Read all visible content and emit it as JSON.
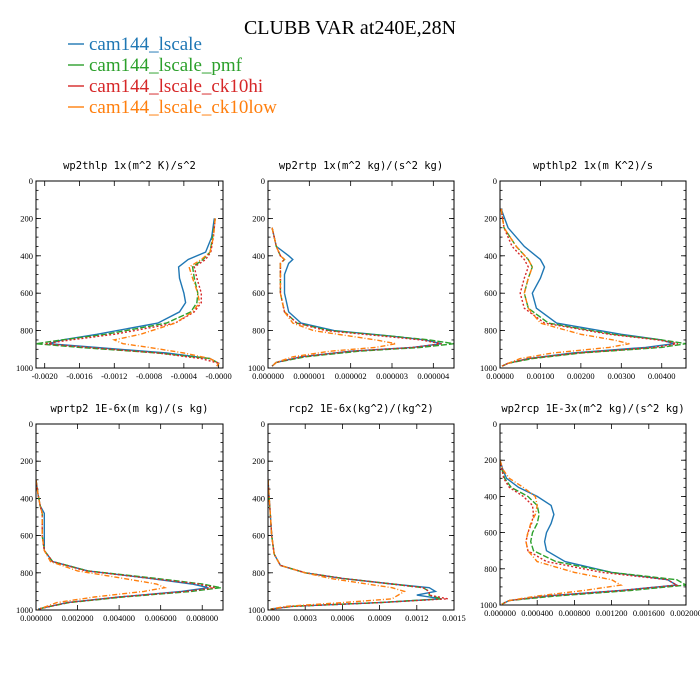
{
  "figure": {
    "title": "CLUBB VAR at240E,28N"
  },
  "legend": [
    {
      "label": "cam144_lscale",
      "color": "#1f77b4",
      "dash": ""
    },
    {
      "label": "cam144_lscale_pmf",
      "color": "#2ca02c",
      "dash": "6,2"
    },
    {
      "label": "cam144_lscale_ck10hi",
      "color": "#d62728",
      "dash": "2,2"
    },
    {
      "label": "cam144_lscale_ck10low",
      "color": "#ff7f0e",
      "dash": "5,2,1,2"
    }
  ],
  "chart_data": [
    {
      "type": "line",
      "title": "wp2thlp  1x(m^2 K)/s^2",
      "xlim": [
        -0.0021,
        5e-05
      ],
      "ylim": [
        1000,
        0
      ],
      "xticks": [
        -0.002,
        -0.0016,
        -0.0012,
        -0.0008,
        -0.0004,
        0.0
      ],
      "xticklabels": [
        "-0.0020",
        "-0.0016",
        "-0.0012",
        "-0.0008",
        "-0.0004",
        "-0.0000"
      ],
      "yticks": [
        0,
        200,
        400,
        600,
        800,
        1000
      ],
      "y": [
        200,
        300,
        380,
        420,
        460,
        520,
        600,
        650,
        700,
        760,
        820,
        850,
        870,
        890,
        920,
        950,
        975,
        990
      ],
      "series": [
        {
          "x": [
            -5e-05,
            -8e-05,
            -0.00015,
            -0.00035,
            -0.00046,
            -0.00045,
            -0.0004,
            -0.00038,
            -0.00045,
            -0.0007,
            -0.0014,
            -0.0018,
            -0.00195,
            -0.0014,
            -0.0006,
            -0.0001,
            0.0,
            -2e-05
          ]
        },
        {
          "x": [
            -4e-05,
            -7e-05,
            -0.0001,
            -0.00018,
            -0.0003,
            -0.00028,
            -0.00024,
            -0.00025,
            -0.00032,
            -0.0006,
            -0.0013,
            -0.0018,
            -0.0021,
            -0.0016,
            -0.0007,
            -0.0001,
            0.0,
            -2e-05
          ]
        },
        {
          "x": [
            -4e-05,
            -6e-05,
            -9e-05,
            -0.00015,
            -0.00028,
            -0.00025,
            -0.0002,
            -0.0002,
            -0.00028,
            -0.0005,
            -0.0012,
            -0.0017,
            -0.002,
            -0.0015,
            -0.0007,
            -0.0002,
            0.0,
            -2e-05
          ]
        },
        {
          "x": [
            -4e-05,
            -6e-05,
            -0.0001,
            -0.0002,
            -0.00034,
            -0.0003,
            -0.00024,
            -0.00022,
            -0.0003,
            -0.0005,
            -0.0009,
            -0.0012,
            -0.0011,
            -0.0008,
            -0.0004,
            -0.0001,
            0.0,
            -2e-05
          ]
        }
      ]
    },
    {
      "type": "line",
      "title": "wp2rtp  1x(m^2 kg)/(s^2 kg)",
      "xlim": [
        0.0,
        4.5e-06
      ],
      "ylim": [
        1000,
        0
      ],
      "xticks": [
        0.0,
        1e-06,
        2e-06,
        3e-06,
        4e-06
      ],
      "xticklabels": [
        "0.000000",
        "0.000001",
        "0.000002",
        "0.000003",
        "0.000004"
      ],
      "yticks": [
        0,
        200,
        400,
        600,
        800,
        1000
      ],
      "y": [
        250,
        350,
        400,
        420,
        440,
        500,
        600,
        700,
        760,
        800,
        830,
        850,
        870,
        890,
        910,
        940,
        970,
        990
      ],
      "series": [
        {
          "x": [
            1e-07,
            2e-07,
            5e-07,
            6e-07,
            5e-07,
            4e-07,
            4e-07,
            5e-07,
            8e-07,
            1.6e-06,
            3e-06,
            3.8e-06,
            4.2e-06,
            3.5e-06,
            2e-06,
            8e-07,
            2e-07,
            1e-07
          ]
        },
        {
          "x": [
            1e-07,
            2e-07,
            3e-07,
            4e-07,
            3e-07,
            3e-07,
            3e-07,
            4e-07,
            7e-07,
            1.5e-06,
            3e-06,
            3.9e-06,
            4.5e-06,
            3.7e-06,
            2.2e-06,
            9e-07,
            2e-07,
            1e-07
          ]
        },
        {
          "x": [
            1e-07,
            2e-07,
            3e-07,
            4e-07,
            3e-07,
            3e-07,
            3e-07,
            4e-07,
            7e-07,
            1.4e-06,
            2.8e-06,
            3.7e-06,
            4.2e-06,
            3.5e-06,
            2e-06,
            8e-07,
            2e-07,
            1e-07
          ]
        },
        {
          "x": [
            1e-07,
            2e-07,
            3e-07,
            4e-07,
            3e-07,
            3e-07,
            3e-07,
            4e-07,
            6e-07,
            1.1e-06,
            2e-06,
            2.6e-06,
            3.1e-06,
            2.6e-06,
            1.5e-06,
            6e-07,
            2e-07,
            1e-07
          ]
        }
      ]
    },
    {
      "type": "line",
      "title": "wpthlp2  1x(m K^2)/s",
      "xlim": [
        0.0,
        0.0046
      ],
      "ylim": [
        1000,
        0
      ],
      "xticks": [
        0.0,
        0.001,
        0.002,
        0.003,
        0.004
      ],
      "xticklabels": [
        "0.00000",
        "0.00100",
        "0.00200",
        "0.00300",
        "0.00400"
      ],
      "yticks": [
        0,
        200,
        400,
        600,
        800,
        1000
      ],
      "y": [
        150,
        250,
        350,
        420,
        460,
        520,
        600,
        680,
        760,
        820,
        850,
        870,
        890,
        920,
        950,
        975,
        990
      ],
      "series": [
        {
          "x": [
            3e-05,
            0.0002,
            0.0006,
            0.001,
            0.0011,
            0.001,
            0.0008,
            0.0009,
            0.0014,
            0.003,
            0.004,
            0.0043,
            0.0036,
            0.0018,
            0.0007,
            0.0002,
            5e-05
          ]
        },
        {
          "x": [
            3e-05,
            0.0001,
            0.0004,
            0.0007,
            0.0008,
            0.0007,
            0.0006,
            0.0007,
            0.0012,
            0.0028,
            0.004,
            0.0046,
            0.004,
            0.002,
            0.0008,
            0.0002,
            5e-05
          ]
        },
        {
          "x": [
            3e-05,
            0.0001,
            0.0003,
            0.0006,
            0.0007,
            0.0006,
            0.0005,
            0.0006,
            0.0011,
            0.0027,
            0.0039,
            0.0044,
            0.0038,
            0.0019,
            0.0007,
            0.0002,
            5e-05
          ]
        },
        {
          "x": [
            3e-05,
            0.0001,
            0.0004,
            0.0007,
            0.0008,
            0.0007,
            0.0006,
            0.0007,
            0.001,
            0.002,
            0.0028,
            0.0032,
            0.0027,
            0.0013,
            0.0005,
            0.0002,
            5e-05
          ]
        }
      ]
    },
    {
      "type": "line",
      "title": "wprtp2  1E-6x(m kg)/(s kg)",
      "xlim": [
        0.0,
        0.009
      ],
      "ylim": [
        1000,
        0
      ],
      "xticks": [
        0.0,
        0.002,
        0.004,
        0.006,
        0.008
      ],
      "xticklabels": [
        "0.000000",
        "0.002000",
        "0.004000",
        "0.006000",
        "0.008000"
      ],
      "yticks": [
        0,
        200,
        400,
        600,
        800,
        1000
      ],
      "y": [
        300,
        380,
        440,
        480,
        520,
        600,
        680,
        740,
        790,
        830,
        860,
        880,
        900,
        930,
        960,
        985,
        995
      ],
      "series": [
        {
          "x": [
            0.0,
            0.0001,
            0.0002,
            0.0004,
            0.0004,
            0.0004,
            0.0004,
            0.0008,
            0.0025,
            0.0055,
            0.0075,
            0.0083,
            0.007,
            0.004,
            0.0015,
            0.0005,
            0.0001
          ]
        },
        {
          "x": [
            0.0,
            0.0001,
            0.0002,
            0.0003,
            0.0003,
            0.0003,
            0.0004,
            0.0008,
            0.0025,
            0.0058,
            0.008,
            0.0089,
            0.0075,
            0.0042,
            0.0016,
            0.0005,
            0.0001
          ]
        },
        {
          "x": [
            0.0,
            0.0001,
            0.0002,
            0.0003,
            0.0003,
            0.0003,
            0.0004,
            0.0008,
            0.0024,
            0.0055,
            0.0078,
            0.0086,
            0.0072,
            0.004,
            0.0015,
            0.0005,
            0.0001
          ]
        },
        {
          "x": [
            0.0,
            0.0001,
            0.0002,
            0.0003,
            0.0003,
            0.0003,
            0.0004,
            0.0007,
            0.002,
            0.0042,
            0.0058,
            0.0062,
            0.0052,
            0.0028,
            0.001,
            0.0004,
            0.0001
          ]
        }
      ]
    },
    {
      "type": "line",
      "title": "rcp2  1E-6x(kg^2)/(kg^2)",
      "xlim": [
        0.0,
        0.0015
      ],
      "ylim": [
        1000,
        0
      ],
      "xticks": [
        0.0,
        0.0003,
        0.0006,
        0.0009,
        0.0012,
        0.0015
      ],
      "xticklabels": [
        "0.0000",
        "0.0003",
        "0.0006",
        "0.0009",
        "0.0012",
        "0.0015"
      ],
      "yticks": [
        0,
        200,
        400,
        600,
        800,
        1000
      ],
      "y": [
        300,
        400,
        500,
        600,
        700,
        760,
        800,
        830,
        860,
        880,
        900,
        920,
        940,
        960,
        980,
        995
      ],
      "series": [
        {
          "x": [
            0.0,
            1e-05,
            2e-05,
            3e-05,
            5e-05,
            0.0001,
            0.0003,
            0.0006,
            0.001,
            0.0013,
            0.00135,
            0.0012,
            0.0014,
            0.0009,
            0.0002,
            2e-05
          ]
        },
        {
          "x": [
            0.0,
            1e-05,
            2e-05,
            3e-05,
            5e-05,
            0.0001,
            0.0003,
            0.0006,
            0.001,
            0.00125,
            0.0013,
            0.0013,
            0.0014,
            0.0009,
            0.0002,
            2e-05
          ]
        },
        {
          "x": [
            0.0,
            1e-05,
            2e-05,
            3e-05,
            5e-05,
            0.0001,
            0.0003,
            0.0006,
            0.001,
            0.00125,
            0.0013,
            0.0013,
            0.00145,
            0.0009,
            0.0002,
            2e-05
          ]
        },
        {
          "x": [
            0.0,
            1e-05,
            2e-05,
            3e-05,
            5e-05,
            0.0001,
            0.0003,
            0.0005,
            0.0008,
            0.001,
            0.0011,
            0.00105,
            0.001,
            0.0006,
            0.00015,
            2e-05
          ]
        }
      ]
    },
    {
      "type": "line",
      "title": "wp2rcp  1E-3x(m^2 kg)/(s^2 kg)",
      "xlim": [
        0.0,
        0.002
      ],
      "ylim": [
        1000,
        0
      ],
      "xticks": [
        0.0,
        0.0004,
        0.0008,
        0.0012,
        0.0016,
        0.002
      ],
      "xticklabels": [
        "0.000000",
        "0.000400",
        "0.000800",
        "0.001200",
        "0.001600",
        "0.002000"
      ],
      "yticks": [
        0,
        200,
        400,
        600,
        800,
        1000
      ],
      "y": [
        200,
        250,
        300,
        350,
        400,
        450,
        500,
        550,
        600,
        650,
        700,
        760,
        820,
        860,
        890,
        920,
        950,
        975,
        995
      ],
      "series": [
        {
          "x": [
            0.0,
            3e-05,
            7e-05,
            0.0002,
            0.0004,
            0.00055,
            0.00058,
            0.00055,
            0.0005,
            0.00048,
            0.0005,
            0.0007,
            0.0012,
            0.0018,
            0.0019,
            0.0013,
            0.0005,
            0.0001,
            2e-05
          ]
        },
        {
          "x": [
            0.0,
            2e-05,
            5e-05,
            0.00012,
            0.0003,
            0.0004,
            0.00042,
            0.0004,
            0.00035,
            0.00033,
            0.00036,
            0.0006,
            0.0012,
            0.0019,
            0.002,
            0.0014,
            0.0006,
            0.0001,
            2e-05
          ]
        },
        {
          "x": [
            0.0,
            2e-05,
            4e-05,
            0.0001,
            0.00025,
            0.00035,
            0.00036,
            0.00034,
            0.0003,
            0.00028,
            0.0003,
            0.0005,
            0.0011,
            0.0018,
            0.0019,
            0.0013,
            0.0005,
            0.0001,
            2e-05
          ]
        },
        {
          "x": [
            0.0,
            3e-05,
            0.0001,
            0.00025,
            0.00038,
            0.0004,
            0.00038,
            0.00033,
            0.0003,
            0.00028,
            0.0003,
            0.0004,
            0.0008,
            0.0012,
            0.0013,
            0.0009,
            0.0004,
            0.0001,
            2e-05
          ]
        }
      ]
    }
  ]
}
